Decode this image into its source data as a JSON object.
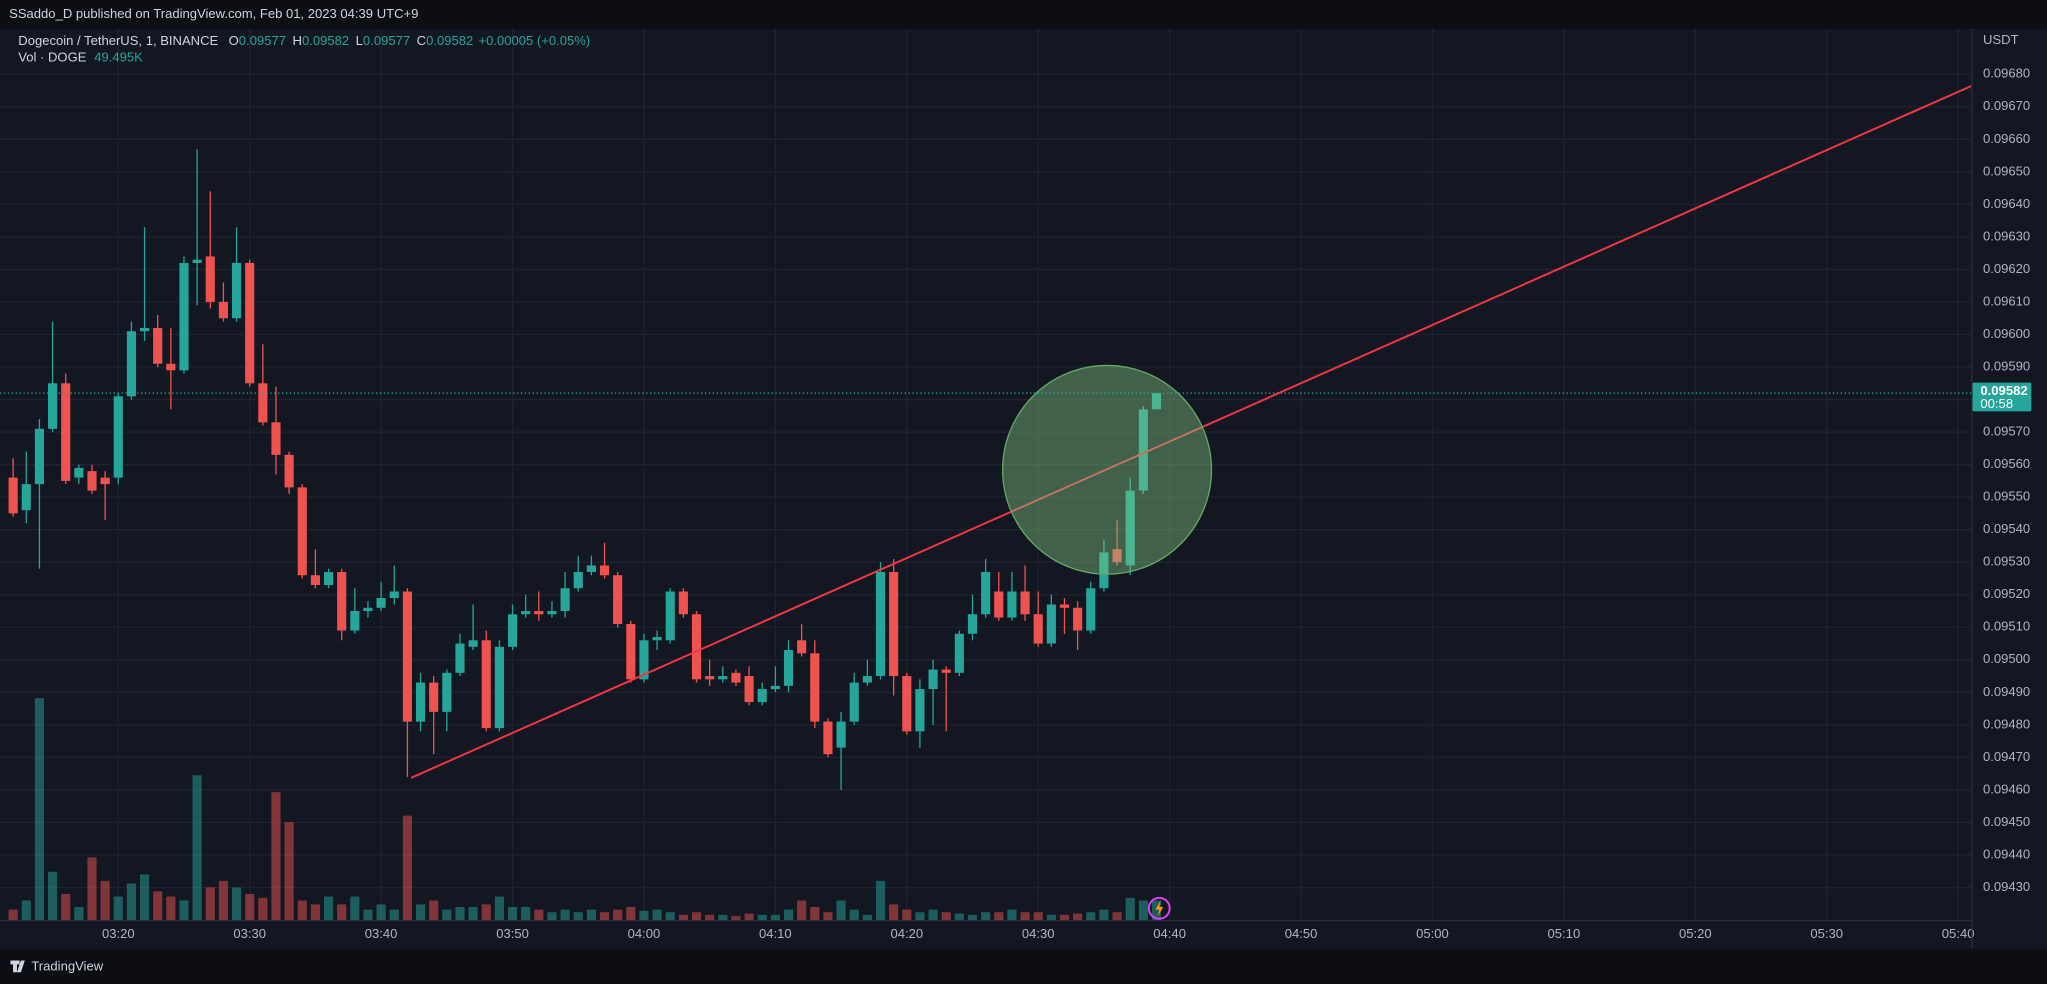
{
  "header": {
    "title": "SSaddo_D published on TradingView.com, Feb 01, 2023 04:39 UTC+9"
  },
  "legend": {
    "symbol": "Dogecoin / TetherUS, 1, BINANCE",
    "open_label": "O",
    "high_label": "H",
    "low_label": "L",
    "close_label": "C",
    "change": "+0.00005 (+0.05%)",
    "volume_label": "Vol · DOGE"
  },
  "footer": {
    "brand": "TradingView"
  },
  "chart_data": {
    "type": "candlestick",
    "y_axis_label": "USDT",
    "countdown": "00:58",
    "up_color": "#26a69a",
    "down_color": "#ef5350",
    "grid": true,
    "last_volume_label": "49.495K",
    "xlim": [
      "03:11",
      "05:41"
    ],
    "xticks": [
      "03:20",
      "03:30",
      "03:40",
      "03:50",
      "04:00",
      "04:10",
      "04:20",
      "04:30",
      "04:40",
      "04:50",
      "05:00",
      "05:10",
      "05:20",
      "05:30",
      "05:40"
    ],
    "ylim": [
      0.0942,
      0.09694
    ],
    "yticks": [
      {
        "value": 0.0943,
        "label": "0.09430"
      },
      {
        "value": 0.0944,
        "label": "0.09440"
      },
      {
        "value": 0.0945,
        "label": "0.09450"
      },
      {
        "value": 0.0946,
        "label": "0.09460"
      },
      {
        "value": 0.0947,
        "label": "0.09470"
      },
      {
        "value": 0.0948,
        "label": "0.09480"
      },
      {
        "value": 0.0949,
        "label": "0.09490"
      },
      {
        "value": 0.095,
        "label": "0.09500"
      },
      {
        "value": 0.0951,
        "label": "0.09510"
      },
      {
        "value": 0.0952,
        "label": "0.09520"
      },
      {
        "value": 0.0953,
        "label": "0.09530"
      },
      {
        "value": 0.0954,
        "label": "0.09540"
      },
      {
        "value": 0.0955,
        "label": "0.09550"
      },
      {
        "value": 0.0956,
        "label": "0.09560"
      },
      {
        "value": 0.0957,
        "label": "0.09570"
      },
      {
        "value": 0.0958,
        "label": "0.09580"
      },
      {
        "value": 0.0959,
        "label": "0.09590"
      },
      {
        "value": 0.096,
        "label": "0.09600"
      },
      {
        "value": 0.0961,
        "label": "0.09610"
      },
      {
        "value": 0.0962,
        "label": "0.09620"
      },
      {
        "value": 0.0963,
        "label": "0.09630"
      },
      {
        "value": 0.0964,
        "label": "0.09640"
      },
      {
        "value": 0.0965,
        "label": "0.09650"
      },
      {
        "value": 0.0966,
        "label": "0.09660"
      },
      {
        "value": 0.0967,
        "label": "0.09670"
      },
      {
        "value": 0.0968,
        "label": "0.09680"
      }
    ],
    "x": [
      "03:12",
      "03:13",
      "03:14",
      "03:15",
      "03:16",
      "03:17",
      "03:18",
      "03:19",
      "03:20",
      "03:21",
      "03:22",
      "03:23",
      "03:24",
      "03:25",
      "03:26",
      "03:27",
      "03:28",
      "03:29",
      "03:30",
      "03:31",
      "03:32",
      "03:33",
      "03:34",
      "03:35",
      "03:36",
      "03:37",
      "03:38",
      "03:39",
      "03:40",
      "03:41",
      "03:42",
      "03:43",
      "03:44",
      "03:45",
      "03:46",
      "03:47",
      "03:48",
      "03:49",
      "03:50",
      "03:51",
      "03:52",
      "03:53",
      "03:54",
      "03:55",
      "03:56",
      "03:57",
      "03:58",
      "03:59",
      "04:00",
      "04:01",
      "04:02",
      "04:03",
      "04:04",
      "04:05",
      "04:06",
      "04:07",
      "04:08",
      "04:09",
      "04:10",
      "04:11",
      "04:12",
      "04:13",
      "04:14",
      "04:15",
      "04:16",
      "04:17",
      "04:18",
      "04:19",
      "04:20",
      "04:21",
      "04:22",
      "04:23",
      "04:24",
      "04:25",
      "04:26",
      "04:27",
      "04:28",
      "04:29",
      "04:30",
      "04:31",
      "04:32",
      "04:33",
      "04:34",
      "04:35",
      "04:36",
      "04:37",
      "04:38",
      "04:39"
    ],
    "open": [
      0.09556,
      0.09546,
      0.09554,
      0.09571,
      0.09585,
      0.09556,
      0.09558,
      0.09556,
      0.09556,
      0.09581,
      0.09601,
      0.09602,
      0.09591,
      0.09589,
      0.09622,
      0.09624,
      0.0961,
      0.09605,
      0.09622,
      0.09585,
      0.09573,
      0.09563,
      0.09553,
      0.09526,
      0.09523,
      0.09527,
      0.09509,
      0.09515,
      0.09516,
      0.09519,
      0.09521,
      0.09481,
      0.09493,
      0.09484,
      0.09496,
      0.09504,
      0.09506,
      0.09479,
      0.09504,
      0.09514,
      0.09515,
      0.09514,
      0.09515,
      0.09522,
      0.09527,
      0.09529,
      0.09526,
      0.09511,
      0.09494,
      0.09506,
      0.09506,
      0.09521,
      0.09514,
      0.09495,
      0.09494,
      0.09496,
      0.09495,
      0.09487,
      0.09491,
      0.09492,
      0.09506,
      0.09502,
      0.09481,
      0.09473,
      0.09481,
      0.09493,
      0.09495,
      0.09527,
      0.09495,
      0.09478,
      0.09491,
      0.09497,
      0.09496,
      0.09508,
      0.09514,
      0.09521,
      0.09513,
      0.09521,
      0.09514,
      0.09505,
      0.09517,
      0.09516,
      0.09509,
      0.09522,
      0.09534,
      0.09529,
      0.09552,
      0.09577
    ],
    "high": [
      0.09562,
      0.09564,
      0.09574,
      0.09604,
      0.09588,
      0.0956,
      0.0956,
      0.09558,
      0.09582,
      0.09604,
      0.09633,
      0.09606,
      0.09602,
      0.09624,
      0.09657,
      0.09644,
      0.09616,
      0.09633,
      0.09623,
      0.09597,
      0.09584,
      0.09564,
      0.09554,
      0.09534,
      0.09528,
      0.09528,
      0.09522,
      0.09518,
      0.09524,
      0.09529,
      0.09522,
      0.09496,
      0.09495,
      0.09497,
      0.09508,
      0.09517,
      0.09509,
      0.09506,
      0.09517,
      0.0952,
      0.09521,
      0.09518,
      0.09527,
      0.09532,
      0.09532,
      0.09536,
      0.09527,
      0.09512,
      0.09508,
      0.09509,
      0.09522,
      0.09522,
      0.09515,
      0.095,
      0.09498,
      0.09497,
      0.09498,
      0.09493,
      0.09498,
      0.09506,
      0.09511,
      0.09506,
      0.09482,
      0.09484,
      0.09496,
      0.095,
      0.0953,
      0.09531,
      0.09496,
      0.09494,
      0.095,
      0.09498,
      0.09509,
      0.0952,
      0.09531,
      0.09527,
      0.09527,
      0.09529,
      0.09521,
      0.0952,
      0.09519,
      0.09518,
      0.09524,
      0.09537,
      0.09543,
      0.09556,
      0.09578,
      0.09582
    ],
    "low": [
      0.09544,
      0.09542,
      0.09528,
      0.0957,
      0.09554,
      0.09554,
      0.09551,
      0.09543,
      0.09554,
      0.0958,
      0.09598,
      0.0959,
      0.09577,
      0.09588,
      0.09609,
      0.09608,
      0.09604,
      0.09604,
      0.09584,
      0.09572,
      0.09557,
      0.09551,
      0.09525,
      0.09522,
      0.09522,
      0.09506,
      0.09508,
      0.09513,
      0.09515,
      0.09517,
      0.09464,
      0.09478,
      0.09471,
      0.09478,
      0.09495,
      0.09503,
      0.09478,
      0.09478,
      0.09503,
      0.09513,
      0.09512,
      0.09513,
      0.09513,
      0.09521,
      0.09526,
      0.09525,
      0.0951,
      0.09493,
      0.09493,
      0.09503,
      0.09505,
      0.09513,
      0.09493,
      0.09492,
      0.09493,
      0.09492,
      0.09486,
      0.09486,
      0.0949,
      0.0949,
      0.09501,
      0.09479,
      0.0947,
      0.0946,
      0.0948,
      0.09492,
      0.09494,
      0.09489,
      0.09477,
      0.09473,
      0.0948,
      0.09478,
      0.09495,
      0.09506,
      0.09513,
      0.09512,
      0.09512,
      0.09512,
      0.09504,
      0.09504,
      0.09508,
      0.09503,
      0.09508,
      0.09521,
      0.09529,
      0.09526,
      0.09551,
      0.09577
    ],
    "close": [
      0.09545,
      0.09554,
      0.09571,
      0.09585,
      0.09555,
      0.09559,
      0.09552,
      0.09554,
      0.09581,
      0.09601,
      0.09602,
      0.09591,
      0.09589,
      0.09622,
      0.09623,
      0.0961,
      0.09605,
      0.09622,
      0.09585,
      0.09573,
      0.09563,
      0.09553,
      0.09526,
      0.09523,
      0.09527,
      0.09509,
      0.09515,
      0.09516,
      0.09519,
      0.09521,
      0.09481,
      0.09493,
      0.09484,
      0.09496,
      0.09505,
      0.09506,
      0.09479,
      0.09504,
      0.09514,
      0.09515,
      0.09514,
      0.09515,
      0.09522,
      0.09527,
      0.09529,
      0.09526,
      0.09511,
      0.09494,
      0.09506,
      0.09507,
      0.09521,
      0.09514,
      0.09494,
      0.09494,
      0.09495,
      0.09493,
      0.09487,
      0.09491,
      0.09492,
      0.09503,
      0.09502,
      0.09481,
      0.09471,
      0.09481,
      0.09493,
      0.09495,
      0.09527,
      0.09495,
      0.09478,
      0.09491,
      0.09497,
      0.09496,
      0.09508,
      0.09514,
      0.09527,
      0.09513,
      0.09521,
      0.09514,
      0.09505,
      0.09517,
      0.09516,
      0.09509,
      0.09522,
      0.09533,
      0.0953,
      0.09552,
      0.09577,
      0.09582
    ],
    "volume": [
      26400,
      49500,
      561000,
      122100,
      66000,
      33000,
      158400,
      99000,
      59400,
      92400,
      115500,
      72600,
      59400,
      49500,
      366300,
      82500,
      99000,
      82500,
      66000,
      56100,
      323400,
      247500,
      49500,
      39600,
      59400,
      39600,
      59400,
      26400,
      39600,
      26400,
      264000,
      39600,
      49500,
      26400,
      33000,
      33000,
      39600,
      59400,
      33000,
      33000,
      26400,
      19800,
      26400,
      19800,
      26400,
      19800,
      26400,
      33000,
      23100,
      26400,
      19800,
      13200,
      19800,
      13200,
      13200,
      9900,
      16500,
      13200,
      13200,
      26400,
      49500,
      33000,
      19800,
      49500,
      26400,
      13200,
      99000,
      39600,
      26400,
      19800,
      26400,
      19800,
      16500,
      13200,
      19800,
      19800,
      26400,
      19800,
      19800,
      13200,
      13200,
      16500,
      19800,
      26400,
      19800,
      56100,
      49500,
      49495
    ]
  }
}
